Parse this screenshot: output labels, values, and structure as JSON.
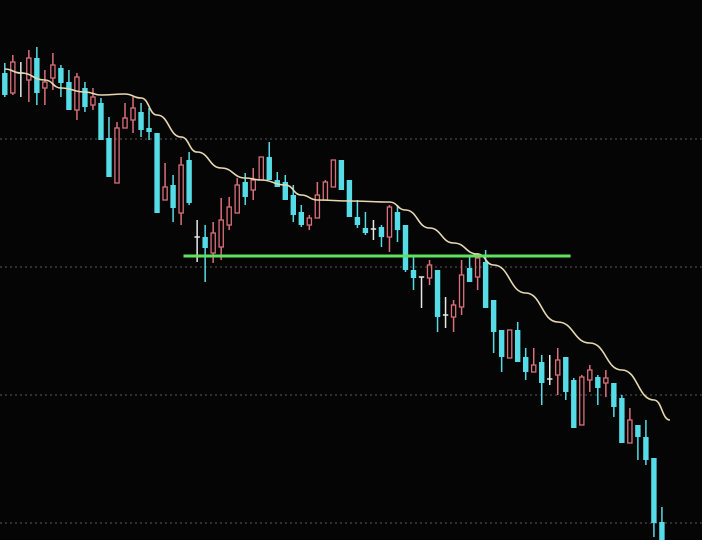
{
  "chart_data": {
    "type": "candlestick",
    "title": "",
    "xlabel": "",
    "ylabel": "",
    "ylim": [
      2,
      56
    ],
    "x_index_range": [
      -0.6,
      87
    ],
    "grid": true,
    "grid_levels": [
      42.1,
      29.3,
      16.5,
      3.7
    ],
    "colors": {
      "background": "#050505",
      "up": "#d9707a",
      "down": "#55dce6",
      "doji": "#e8e8e8",
      "moving_average": "#e6d9b0",
      "support_line": "#5fe35f",
      "grid": "#5a5a5a"
    },
    "candles_ohlc": [
      [
        48.7,
        49.7,
        46.3,
        46.5
      ],
      [
        46.7,
        50.5,
        46.5,
        49.8
      ],
      [
        48.7,
        49.8,
        46.3,
        48.7
      ],
      [
        48.0,
        51.0,
        45.8,
        50.2
      ],
      [
        50.2,
        51.3,
        45.5,
        46.7
      ],
      [
        47.2,
        49.0,
        45.5,
        47.8
      ],
      [
        48.2,
        50.7,
        47.0,
        49.5
      ],
      [
        49.2,
        49.5,
        46.3,
        47.7
      ],
      [
        47.8,
        49.0,
        45.0,
        45.0
      ],
      [
        45.0,
        48.7,
        44.0,
        48.3
      ],
      [
        47.2,
        47.8,
        44.8,
        45.3
      ],
      [
        45.5,
        47.2,
        45.0,
        46.3
      ],
      [
        45.7,
        46.2,
        42.0,
        42.0
      ],
      [
        42.2,
        44.3,
        38.3,
        38.3
      ],
      [
        37.7,
        43.8,
        37.7,
        43.2
      ],
      [
        43.2,
        45.7,
        43.2,
        44.2
      ],
      [
        44.0,
        46.3,
        42.7,
        45.2
      ],
      [
        44.8,
        45.7,
        42.3,
        43.0
      ],
      [
        43.2,
        45.2,
        42.0,
        42.8
      ],
      [
        42.7,
        42.7,
        34.7,
        34.7
      ],
      [
        36.0,
        39.7,
        36.0,
        37.3
      ],
      [
        37.5,
        38.5,
        33.8,
        35.2
      ],
      [
        34.7,
        40.3,
        33.5,
        39.5
      ],
      [
        40.0,
        40.8,
        35.5,
        35.7
      ],
      [
        32.3,
        34.0,
        29.8,
        32.3
      ],
      [
        32.3,
        33.5,
        27.8,
        31.2
      ],
      [
        30.7,
        33.8,
        29.7,
        32.7
      ],
      [
        31.3,
        36.2,
        30.0,
        34.0
      ],
      [
        33.5,
        36.3,
        33.0,
        35.3
      ],
      [
        34.7,
        38.2,
        34.7,
        37.5
      ],
      [
        37.8,
        38.7,
        35.5,
        36.3
      ],
      [
        37.0,
        39.2,
        36.0,
        38.0
      ],
      [
        38.0,
        40.3,
        38.0,
        40.3
      ],
      [
        40.3,
        41.8,
        38.0,
        38.0
      ],
      [
        38.0,
        38.8,
        37.3,
        37.3
      ],
      [
        37.8,
        38.5,
        36.0,
        36.0
      ],
      [
        36.5,
        37.5,
        33.8,
        34.5
      ],
      [
        34.8,
        35.5,
        33.3,
        33.5
      ],
      [
        33.5,
        34.5,
        33.0,
        34.2
      ],
      [
        34.2,
        37.8,
        34.2,
        36.5
      ],
      [
        36.0,
        38.0,
        36.0,
        37.8
      ],
      [
        37.3,
        40.0,
        37.3,
        40.0
      ],
      [
        40.0,
        40.0,
        37.0,
        37.0
      ],
      [
        38.0,
        38.0,
        34.3,
        34.3
      ],
      [
        34.3,
        36.0,
        33.2,
        33.5
      ],
      [
        33.2,
        34.8,
        32.5,
        32.7
      ],
      [
        33.1,
        34.0,
        32.0,
        33.1
      ],
      [
        33.3,
        33.5,
        31.3,
        32.3
      ],
      [
        32.3,
        35.5,
        30.8,
        35.3
      ],
      [
        34.8,
        35.5,
        31.8,
        33.0
      ],
      [
        33.5,
        33.5,
        28.8,
        29.0
      ],
      [
        29.0,
        30.5,
        27.0,
        28.2
      ],
      [
        28.3,
        28.3,
        25.2,
        28.3
      ],
      [
        28.2,
        30.0,
        27.5,
        29.5
      ],
      [
        29.0,
        29.0,
        22.8,
        24.3
      ],
      [
        24.5,
        26.3,
        23.2,
        24.5
      ],
      [
        24.3,
        26.0,
        22.8,
        25.5
      ],
      [
        25.3,
        30.0,
        24.5,
        28.5
      ],
      [
        29.2,
        30.5,
        27.8,
        27.8
      ],
      [
        28.3,
        30.7,
        27.0,
        30.2
      ],
      [
        29.8,
        31.0,
        25.2,
        25.2
      ],
      [
        26.0,
        26.0,
        20.7,
        22.8
      ],
      [
        23.0,
        23.0,
        18.8,
        20.3
      ],
      [
        20.2,
        23.0,
        20.2,
        23.0
      ],
      [
        23.0,
        23.8,
        19.8,
        19.8
      ],
      [
        20.3,
        21.2,
        18.0,
        18.8
      ],
      [
        18.8,
        21.2,
        18.8,
        19.5
      ],
      [
        19.8,
        20.5,
        15.5,
        17.7
      ],
      [
        18.1,
        20.5,
        17.5,
        18.1
      ],
      [
        18.5,
        21.2,
        16.5,
        20.0
      ],
      [
        20.3,
        20.3,
        16.0,
        16.8
      ],
      [
        18.0,
        18.2,
        13.2,
        13.2
      ],
      [
        13.5,
        18.5,
        13.5,
        18.3
      ],
      [
        18.0,
        19.5,
        16.8,
        19.0
      ],
      [
        18.3,
        18.5,
        15.5,
        17.2
      ],
      [
        17.7,
        19.0,
        16.3,
        18.2
      ],
      [
        17.7,
        17.7,
        14.3,
        15.3
      ],
      [
        16.2,
        16.5,
        11.7,
        11.7
      ],
      [
        11.7,
        15.2,
        11.7,
        14.0
      ],
      [
        13.5,
        13.5,
        10.0,
        12.3
      ],
      [
        12.3,
        14.0,
        9.5,
        10.0
      ],
      [
        10.2,
        10.2,
        2.3,
        3.7
      ],
      [
        3.8,
        5.3,
        2.0,
        2.0
      ]
    ],
    "moving_average": [
      [
        0,
        49.1
      ],
      [
        2,
        48.7
      ],
      [
        5,
        48.0
      ],
      [
        7,
        47.2
      ],
      [
        10,
        46.8
      ],
      [
        12,
        46.5
      ],
      [
        15,
        46.6
      ],
      [
        17,
        46.2
      ],
      [
        19,
        44.5
      ],
      [
        22,
        42.3
      ],
      [
        24,
        40.8
      ],
      [
        27,
        39.2
      ],
      [
        30,
        38.2
      ],
      [
        32,
        38.0
      ],
      [
        35,
        37.5
      ],
      [
        37,
        36.5
      ],
      [
        39,
        36.0
      ],
      [
        43,
        35.9
      ],
      [
        48,
        35.8
      ],
      [
        50,
        35.0
      ],
      [
        53,
        33.2
      ],
      [
        56,
        31.7
      ],
      [
        59,
        30.6
      ],
      [
        61,
        29.5
      ],
      [
        65,
        26.7
      ],
      [
        69,
        23.8
      ],
      [
        73,
        21.7
      ],
      [
        77,
        19.0
      ],
      [
        81,
        16.0
      ],
      [
        83,
        14.0
      ]
    ],
    "support_line": {
      "price": 30.4,
      "from_index": 22.3,
      "to_index": 70.6
    }
  }
}
